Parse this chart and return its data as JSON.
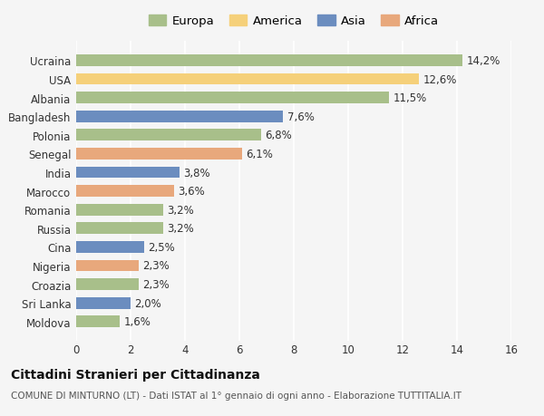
{
  "countries": [
    "Ucraina",
    "USA",
    "Albania",
    "Bangladesh",
    "Polonia",
    "Senegal",
    "India",
    "Marocco",
    "Romania",
    "Russia",
    "Cina",
    "Nigeria",
    "Croazia",
    "Sri Lanka",
    "Moldova"
  ],
  "values": [
    14.2,
    12.6,
    11.5,
    7.6,
    6.8,
    6.1,
    3.8,
    3.6,
    3.2,
    3.2,
    2.5,
    2.3,
    2.3,
    2.0,
    1.6
  ],
  "categories": [
    "Europa",
    "America",
    "Europa",
    "Asia",
    "Europa",
    "Africa",
    "Asia",
    "Africa",
    "Europa",
    "Europa",
    "Asia",
    "Africa",
    "Europa",
    "Asia",
    "Europa"
  ],
  "colors": {
    "Europa": "#a8bf8a",
    "America": "#f5d07a",
    "Asia": "#6b8dbf",
    "Africa": "#e8a87c"
  },
  "legend_order": [
    "Europa",
    "America",
    "Asia",
    "Africa"
  ],
  "title": "Cittadini Stranieri per Cittadinanza",
  "subtitle": "COMUNE DI MINTURNO (LT) - Dati ISTAT al 1° gennaio di ogni anno - Elaborazione TUTTITALIA.IT",
  "xlim": [
    0,
    16
  ],
  "xticks": [
    0,
    2,
    4,
    6,
    8,
    10,
    12,
    14,
    16
  ],
  "background_color": "#f5f5f5",
  "grid_color": "#ffffff",
  "title_fontsize": 10,
  "subtitle_fontsize": 7.5,
  "label_fontsize": 8.5,
  "tick_fontsize": 8.5,
  "legend_fontsize": 9.5
}
